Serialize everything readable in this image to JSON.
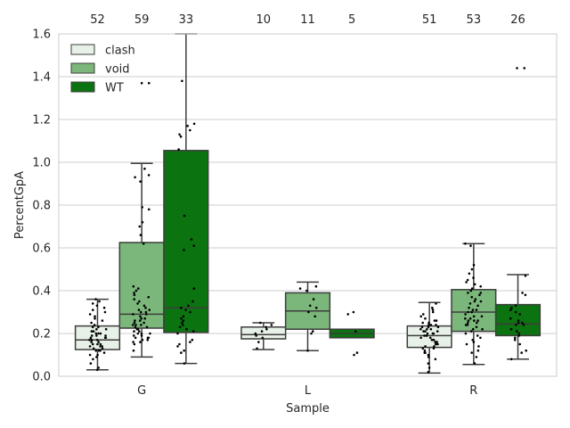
{
  "chart_data": {
    "type": "box",
    "xlabel": "Sample",
    "ylabel": "PercentGpA",
    "ylim": [
      0.0,
      1.6
    ],
    "yticks": [
      "0.0",
      "0.2",
      "0.4",
      "0.6",
      "0.8",
      "1.0",
      "1.2",
      "1.4",
      "1.6"
    ],
    "categories": [
      "G",
      "L",
      "R"
    ],
    "grid": true,
    "legend_position": "top-left",
    "series": [
      {
        "name": "clash",
        "color": "#e8f1e8",
        "counts": [
          "52",
          "10",
          "51"
        ],
        "boxes": [
          {
            "whisker_low": 0.03,
            "q1": 0.125,
            "median": 0.17,
            "q3": 0.235,
            "whisker_high": 0.36
          },
          {
            "whisker_low": 0.125,
            "q1": 0.175,
            "median": 0.195,
            "q3": 0.23,
            "whisker_high": 0.25
          },
          {
            "whisker_low": 0.015,
            "q1": 0.135,
            "median": 0.19,
            "q3": 0.235,
            "whisker_high": 0.345
          }
        ],
        "points": [
          [
            0.03,
            0.04,
            0.06,
            0.08,
            0.09,
            0.1,
            0.1,
            0.11,
            0.12,
            0.12,
            0.13,
            0.13,
            0.14,
            0.14,
            0.15,
            0.15,
            0.15,
            0.16,
            0.16,
            0.17,
            0.17,
            0.17,
            0.18,
            0.18,
            0.18,
            0.19,
            0.19,
            0.19,
            0.2,
            0.2,
            0.2,
            0.21,
            0.21,
            0.22,
            0.22,
            0.23,
            0.23,
            0.24,
            0.25,
            0.26,
            0.27,
            0.28,
            0.29,
            0.3,
            0.31,
            0.32,
            0.33,
            0.34,
            0.35,
            0.36,
            0.14,
            0.12
          ],
          [
            0.13,
            0.16,
            0.18,
            0.19,
            0.2,
            0.21,
            0.22,
            0.23,
            0.24,
            0.25
          ],
          [
            0.02,
            0.04,
            0.06,
            0.08,
            0.09,
            0.1,
            0.11,
            0.12,
            0.13,
            0.13,
            0.14,
            0.14,
            0.15,
            0.15,
            0.16,
            0.16,
            0.17,
            0.17,
            0.18,
            0.18,
            0.19,
            0.19,
            0.19,
            0.2,
            0.2,
            0.2,
            0.21,
            0.21,
            0.22,
            0.22,
            0.22,
            0.23,
            0.23,
            0.23,
            0.24,
            0.24,
            0.24,
            0.25,
            0.25,
            0.26,
            0.26,
            0.27,
            0.28,
            0.29,
            0.3,
            0.31,
            0.32,
            0.34,
            0.11,
            0.16,
            0.21
          ]
        ]
      },
      {
        "name": "void",
        "color": "#7bb77b",
        "counts": [
          "59",
          "11",
          "53"
        ],
        "boxes": [
          {
            "whisker_low": 0.09,
            "q1": 0.225,
            "median": 0.29,
            "q3": 0.625,
            "whisker_high": 0.995
          },
          {
            "whisker_low": 0.12,
            "q1": 0.22,
            "median": 0.305,
            "q3": 0.39,
            "whisker_high": 0.44
          },
          {
            "whisker_low": 0.055,
            "q1": 0.21,
            "median": 0.3,
            "q3": 0.405,
            "whisker_high": 0.62
          }
        ],
        "points": [
          [
            0.12,
            0.15,
            0.16,
            0.17,
            0.17,
            0.18,
            0.18,
            0.19,
            0.19,
            0.2,
            0.2,
            0.21,
            0.21,
            0.22,
            0.22,
            0.23,
            0.23,
            0.24,
            0.24,
            0.25,
            0.25,
            0.26,
            0.26,
            0.27,
            0.28,
            0.29,
            0.29,
            0.3,
            0.3,
            0.31,
            0.31,
            0.32,
            0.33,
            0.34,
            0.35,
            0.36,
            0.37,
            0.38,
            0.39,
            0.4,
            0.41,
            0.42,
            0.62,
            0.66,
            0.7,
            0.72,
            0.78,
            0.79,
            0.91,
            0.93,
            0.94,
            0.97,
            1.37,
            1.37,
            0.27,
            0.24,
            0.2,
            0.18,
            0.16
          ],
          [
            0.12,
            0.2,
            0.21,
            0.28,
            0.3,
            0.32,
            0.33,
            0.36,
            0.4,
            0.41,
            0.42
          ],
          [
            0.06,
            0.09,
            0.11,
            0.12,
            0.14,
            0.16,
            0.17,
            0.18,
            0.19,
            0.2,
            0.21,
            0.22,
            0.22,
            0.23,
            0.24,
            0.25,
            0.25,
            0.26,
            0.26,
            0.27,
            0.27,
            0.28,
            0.28,
            0.29,
            0.3,
            0.3,
            0.31,
            0.32,
            0.33,
            0.34,
            0.35,
            0.36,
            0.37,
            0.38,
            0.39,
            0.4,
            0.41,
            0.42,
            0.43,
            0.44,
            0.45,
            0.46,
            0.48,
            0.5,
            0.52,
            0.61,
            0.62,
            0.24,
            0.26,
            0.31,
            0.35,
            0.39,
            0.15
          ]
        ]
      },
      {
        "name": "WT",
        "color": "#0b7410",
        "counts": [
          "33",
          "5",
          "26"
        ],
        "boxes": [
          {
            "whisker_low": 0.06,
            "q1": 0.205,
            "median": 0.32,
            "q3": 1.055,
            "whisker_high": 1.6
          },
          {
            "whisker_low": 0.18,
            "q1": 0.18,
            "median": 0.2,
            "q3": 0.22,
            "whisker_high": 0.22
          },
          {
            "whisker_low": 0.08,
            "q1": 0.19,
            "median": 0.245,
            "q3": 0.335,
            "whisker_high": 0.475
          }
        ],
        "points": [
          [
            0.06,
            0.11,
            0.12,
            0.14,
            0.15,
            0.16,
            0.17,
            0.2,
            0.22,
            0.25,
            0.26,
            0.27,
            0.3,
            0.31,
            0.32,
            0.33,
            0.35,
            0.41,
            0.59,
            0.61,
            0.64,
            0.75,
            1.06,
            1.12,
            1.13,
            1.15,
            1.17,
            1.18,
            1.38,
            0.28,
            0.24,
            0.23,
            0.21
          ],
          [
            0.1,
            0.11,
            0.21,
            0.29,
            0.3
          ],
          [
            0.08,
            0.11,
            0.12,
            0.15,
            0.17,
            0.18,
            0.19,
            0.2,
            0.22,
            0.24,
            0.24,
            0.25,
            0.25,
            0.26,
            0.29,
            0.3,
            0.31,
            0.32,
            0.33,
            0.38,
            0.39,
            0.47,
            1.44,
            1.44,
            0.21,
            0.27
          ]
        ]
      }
    ]
  }
}
